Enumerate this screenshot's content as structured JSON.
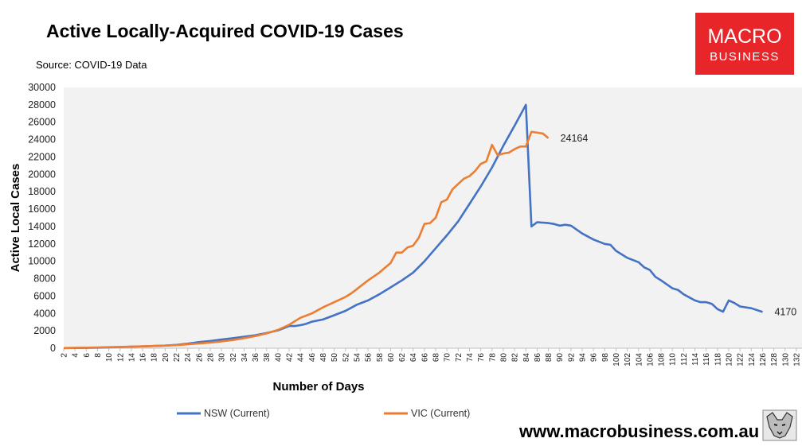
{
  "header": {
    "title": "Active Locally-Acquired COVID-19 Cases",
    "source": "Source: COVID-19 Data"
  },
  "brand": {
    "logo_line1": "MACRO",
    "logo_line2": "BUSINESS",
    "logo_color": "#e8262a",
    "website": "www.macrobusiness.com.au",
    "mascot_icon": "wolf-icon"
  },
  "chart_data": {
    "type": "line",
    "xlabel": "Number of Days",
    "ylabel": "Active Local Cases",
    "xlim": [
      2,
      133
    ],
    "ylim": [
      0,
      30000
    ],
    "x_ticks": [
      2,
      4,
      6,
      8,
      10,
      12,
      14,
      16,
      18,
      20,
      22,
      24,
      26,
      28,
      30,
      32,
      34,
      36,
      38,
      40,
      42,
      44,
      46,
      48,
      50,
      52,
      54,
      56,
      58,
      60,
      62,
      64,
      66,
      68,
      70,
      72,
      74,
      76,
      78,
      80,
      82,
      84,
      86,
      88,
      90,
      92,
      94,
      96,
      98,
      100,
      102,
      104,
      106,
      108,
      110,
      112,
      114,
      116,
      118,
      120,
      122,
      124,
      126,
      128,
      130,
      132
    ],
    "y_ticks": [
      0,
      2000,
      4000,
      6000,
      8000,
      10000,
      12000,
      14000,
      16000,
      18000,
      20000,
      22000,
      24000,
      26000,
      28000,
      30000
    ],
    "grid": false,
    "background": "#f2f2f2",
    "legend_position": "bottom",
    "series": [
      {
        "name": "NSW (Current)",
        "color": "#4472c4",
        "end_label": "4170",
        "points": [
          [
            2,
            20
          ],
          [
            4,
            30
          ],
          [
            6,
            40
          ],
          [
            8,
            60
          ],
          [
            10,
            100
          ],
          [
            12,
            140
          ],
          [
            14,
            170
          ],
          [
            16,
            210
          ],
          [
            18,
            260
          ],
          [
            20,
            300
          ],
          [
            22,
            380
          ],
          [
            24,
            520
          ],
          [
            26,
            700
          ],
          [
            28,
            830
          ],
          [
            30,
            1000
          ],
          [
            32,
            1150
          ],
          [
            34,
            1320
          ],
          [
            36,
            1500
          ],
          [
            38,
            1750
          ],
          [
            40,
            2050
          ],
          [
            41,
            2300
          ],
          [
            42,
            2550
          ],
          [
            43,
            2550
          ],
          [
            44,
            2650
          ],
          [
            45,
            2800
          ],
          [
            46,
            3050
          ],
          [
            48,
            3300
          ],
          [
            50,
            3800
          ],
          [
            52,
            4300
          ],
          [
            54,
            5000
          ],
          [
            56,
            5500
          ],
          [
            58,
            6200
          ],
          [
            60,
            7000
          ],
          [
            62,
            7800
          ],
          [
            64,
            8700
          ],
          [
            66,
            10000
          ],
          [
            68,
            11500
          ],
          [
            70,
            13000
          ],
          [
            72,
            14600
          ],
          [
            74,
            16600
          ],
          [
            76,
            18600
          ],
          [
            78,
            20800
          ],
          [
            80,
            23300
          ],
          [
            82,
            25600
          ],
          [
            84,
            28000
          ],
          [
            85,
            14000
          ],
          [
            86,
            14500
          ],
          [
            88,
            14400
          ],
          [
            89,
            14300
          ],
          [
            90,
            14100
          ],
          [
            91,
            14200
          ],
          [
            92,
            14100
          ],
          [
            94,
            13200
          ],
          [
            96,
            12500
          ],
          [
            98,
            12000
          ],
          [
            99,
            11900
          ],
          [
            100,
            11200
          ],
          [
            102,
            10400
          ],
          [
            104,
            9900
          ],
          [
            105,
            9300
          ],
          [
            106,
            9000
          ],
          [
            107,
            8200
          ],
          [
            108,
            7800
          ],
          [
            110,
            6900
          ],
          [
            111,
            6700
          ],
          [
            112,
            6200
          ],
          [
            114,
            5500
          ],
          [
            115,
            5300
          ],
          [
            116,
            5300
          ],
          [
            117,
            5100
          ],
          [
            118,
            4500
          ],
          [
            119,
            4200
          ],
          [
            120,
            5500
          ],
          [
            121,
            5200
          ],
          [
            122,
            4800
          ],
          [
            124,
            4600
          ],
          [
            126,
            4170
          ]
        ]
      },
      {
        "name": "VIC (Current)",
        "color": "#ed7d31",
        "end_label": "24164",
        "points": [
          [
            2,
            20
          ],
          [
            4,
            40
          ],
          [
            6,
            60
          ],
          [
            8,
            90
          ],
          [
            10,
            120
          ],
          [
            12,
            150
          ],
          [
            14,
            180
          ],
          [
            16,
            220
          ],
          [
            18,
            260
          ],
          [
            20,
            300
          ],
          [
            22,
            360
          ],
          [
            24,
            450
          ],
          [
            26,
            550
          ],
          [
            28,
            650
          ],
          [
            30,
            780
          ],
          [
            32,
            940
          ],
          [
            34,
            1150
          ],
          [
            36,
            1400
          ],
          [
            38,
            1700
          ],
          [
            40,
            2100
          ],
          [
            42,
            2700
          ],
          [
            44,
            3500
          ],
          [
            46,
            4000
          ],
          [
            48,
            4700
          ],
          [
            50,
            5300
          ],
          [
            52,
            5900
          ],
          [
            53,
            6300
          ],
          [
            54,
            6800
          ],
          [
            56,
            7800
          ],
          [
            58,
            8700
          ],
          [
            60,
            9800
          ],
          [
            61,
            11000
          ],
          [
            62,
            11000
          ],
          [
            63,
            11600
          ],
          [
            64,
            11800
          ],
          [
            65,
            12700
          ],
          [
            66,
            14300
          ],
          [
            67,
            14400
          ],
          [
            68,
            15000
          ],
          [
            69,
            16800
          ],
          [
            70,
            17100
          ],
          [
            71,
            18300
          ],
          [
            72,
            18900
          ],
          [
            73,
            19500
          ],
          [
            74,
            19800
          ],
          [
            75,
            20400
          ],
          [
            76,
            21200
          ],
          [
            77,
            21500
          ],
          [
            78,
            23400
          ],
          [
            79,
            22200
          ],
          [
            80,
            22400
          ],
          [
            81,
            22500
          ],
          [
            82,
            22900
          ],
          [
            83,
            23200
          ],
          [
            84,
            23200
          ],
          [
            85,
            24900
          ],
          [
            86,
            24800
          ],
          [
            87,
            24700
          ],
          [
            88,
            24164
          ]
        ]
      }
    ]
  }
}
